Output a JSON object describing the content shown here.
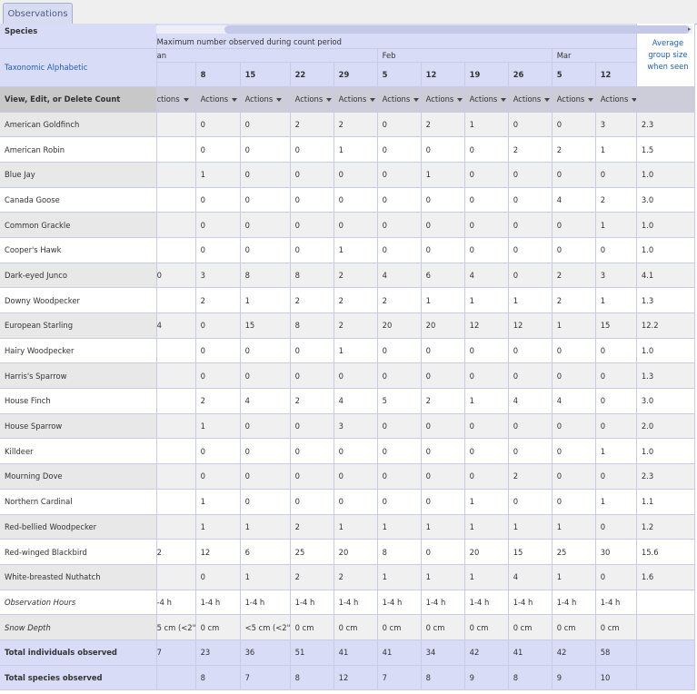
{
  "tab": {
    "label": "Observations"
  },
  "header": {
    "species_label": "Species",
    "max_label": "Maximum number observed during count period",
    "sort_label": "Taxonomic Alphabetic",
    "view_edit_label": "View, Edit, or Delete Count",
    "avg_label_1": "Average",
    "avg_label_2": "group size",
    "avg_label_3": "when seen",
    "months": [
      "an",
      "Feb",
      "Mar"
    ],
    "days": [
      "",
      "8",
      "15",
      "22",
      "29",
      "5",
      "12",
      "19",
      "26",
      "5",
      "12"
    ],
    "actions": [
      "ctions",
      "Actions",
      "Actions",
      "Actions",
      "Actions",
      "Actions",
      "Actions",
      "Actions",
      "Actions",
      "Actions",
      "Actions"
    ]
  },
  "rows": [
    {
      "name": "American Goldfinch",
      "values": [
        "",
        "0",
        "0",
        "2",
        "2",
        "0",
        "2",
        "1",
        "0",
        "0",
        "3"
      ],
      "avg": "2.3"
    },
    {
      "name": "American Robin",
      "values": [
        "",
        "0",
        "0",
        "0",
        "1",
        "0",
        "0",
        "0",
        "2",
        "2",
        "1"
      ],
      "avg": "1.5"
    },
    {
      "name": "Blue Jay",
      "values": [
        "",
        "1",
        "0",
        "0",
        "0",
        "0",
        "1",
        "0",
        "0",
        "0",
        "0"
      ],
      "avg": "1.0"
    },
    {
      "name": "Canada Goose",
      "values": [
        "",
        "0",
        "0",
        "0",
        "0",
        "0",
        "0",
        "0",
        "0",
        "4",
        "2"
      ],
      "avg": "3.0"
    },
    {
      "name": "Common Grackle",
      "values": [
        "",
        "0",
        "0",
        "0",
        "0",
        "0",
        "0",
        "0",
        "0",
        "0",
        "1"
      ],
      "avg": "1.0"
    },
    {
      "name": "Cooper's Hawk",
      "values": [
        "",
        "0",
        "0",
        "0",
        "1",
        "0",
        "0",
        "0",
        "0",
        "0",
        "0"
      ],
      "avg": "1.0"
    },
    {
      "name": "Dark-eyed Junco",
      "values": [
        "0",
        "3",
        "8",
        "8",
        "2",
        "4",
        "6",
        "4",
        "0",
        "2",
        "3"
      ],
      "avg": "4.1"
    },
    {
      "name": "Downy Woodpecker",
      "values": [
        "",
        "2",
        "1",
        "2",
        "2",
        "2",
        "1",
        "1",
        "1",
        "2",
        "1"
      ],
      "avg": "1.3"
    },
    {
      "name": "European Starling",
      "values": [
        "4",
        "0",
        "15",
        "8",
        "2",
        "20",
        "20",
        "12",
        "12",
        "1",
        "15"
      ],
      "avg": "12.2"
    },
    {
      "name": "Hairy Woodpecker",
      "values": [
        "",
        "0",
        "0",
        "0",
        "1",
        "0",
        "0",
        "0",
        "0",
        "0",
        "0"
      ],
      "avg": "1.0"
    },
    {
      "name": "Harris's Sparrow",
      "values": [
        "",
        "0",
        "0",
        "0",
        "0",
        "0",
        "0",
        "0",
        "0",
        "0",
        "0"
      ],
      "avg": "1.3"
    },
    {
      "name": "House Finch",
      "values": [
        "",
        "2",
        "4",
        "2",
        "4",
        "5",
        "2",
        "1",
        "4",
        "4",
        "0"
      ],
      "avg": "3.0"
    },
    {
      "name": "House Sparrow",
      "values": [
        "",
        "1",
        "0",
        "0",
        "3",
        "0",
        "0",
        "0",
        "0",
        "0",
        "0"
      ],
      "avg": "2.0"
    },
    {
      "name": "Killdeer",
      "values": [
        "",
        "0",
        "0",
        "0",
        "0",
        "0",
        "0",
        "0",
        "0",
        "0",
        "1"
      ],
      "avg": "1.0"
    },
    {
      "name": "Mourning Dove",
      "values": [
        "",
        "0",
        "0",
        "0",
        "0",
        "0",
        "0",
        "0",
        "2",
        "0",
        "0"
      ],
      "avg": "2.3"
    },
    {
      "name": "Northern Cardinal",
      "values": [
        "",
        "1",
        "0",
        "0",
        "0",
        "0",
        "0",
        "1",
        "0",
        "0",
        "1"
      ],
      "avg": "1.1"
    },
    {
      "name": "Red-bellied Woodpecker",
      "values": [
        "",
        "1",
        "1",
        "2",
        "1",
        "1",
        "1",
        "1",
        "1",
        "1",
        "0"
      ],
      "avg": "1.2"
    },
    {
      "name": "Red-winged Blackbird",
      "values": [
        "2",
        "12",
        "6",
        "25",
        "20",
        "8",
        "0",
        "20",
        "15",
        "25",
        "30"
      ],
      "avg": "15.6"
    },
    {
      "name": "White-breasted Nuthatch",
      "values": [
        "",
        "0",
        "1",
        "2",
        "2",
        "1",
        "1",
        "1",
        "4",
        "1",
        "0"
      ],
      "avg": "1.6"
    }
  ],
  "obs_hours": {
    "name": "Observation Hours",
    "values": [
      "-4 h",
      "1-4 h",
      "1-4 h",
      "1-4 h",
      "1-4 h",
      "1-4 h",
      "1-4 h",
      "1-4 h",
      "1-4 h",
      "1-4 h",
      "1-4 h"
    ]
  },
  "snow_depth": {
    "name": "Snow Depth",
    "values": [
      "5 cm (<2\")",
      "0 cm",
      "<5 cm (<2\")",
      "0 cm",
      "0 cm",
      "0 cm",
      "0 cm",
      "0 cm",
      "0 cm",
      "0 cm",
      "0 cm"
    ]
  },
  "total_individuals": {
    "name": "Total individuals observed",
    "values": [
      "7",
      "23",
      "36",
      "51",
      "41",
      "41",
      "34",
      "42",
      "41",
      "42",
      "58"
    ]
  },
  "total_species": {
    "name": "Total species observed",
    "values": [
      "",
      "8",
      "7",
      "8",
      "12",
      "7",
      "8",
      "9",
      "8",
      "9",
      "10"
    ]
  }
}
